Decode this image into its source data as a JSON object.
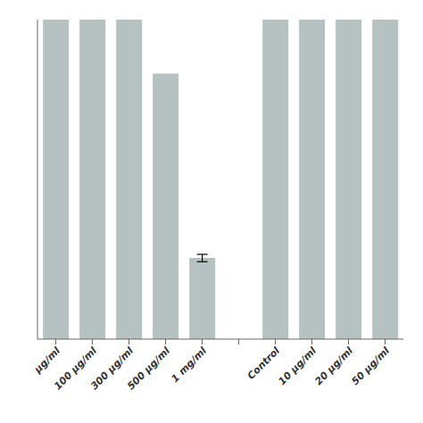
{
  "chart_data": {
    "type": "bar",
    "categories": [
      "μg/ml",
      "100 μg/ml",
      "300 μg/ml",
      "500 μg/ml",
      "1 mg/ml",
      null,
      "Control",
      "10 μg/ml",
      "20 μg/ml",
      "50 μg/ml"
    ],
    "values": [
      130,
      130,
      130,
      108,
      33,
      null,
      130,
      130,
      130,
      130
    ],
    "errors": [
      0,
      0,
      0,
      0,
      1.5,
      null,
      0,
      0,
      0,
      0
    ],
    "color": "#b5c2c1",
    "ylim": [
      0,
      130
    ],
    "tick_labels": "x"
  }
}
